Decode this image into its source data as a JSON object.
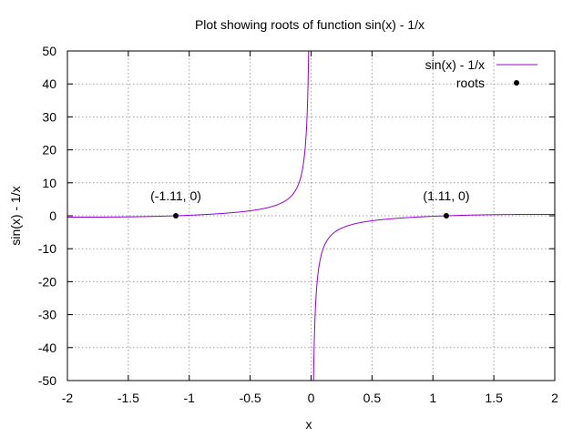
{
  "chart_data": {
    "type": "line",
    "title": "Plot showing roots of function sin(x) - 1/x",
    "xlabel": "x",
    "ylabel": "sin(x) - 1/x",
    "xlim": [
      -2,
      2
    ],
    "ylim": [
      -50,
      50
    ],
    "grid": true,
    "legend_position": "top-right",
    "x_ticks": [
      -2,
      -1.5,
      -1,
      -0.5,
      0,
      0.5,
      1,
      1.5,
      2
    ],
    "x_tick_labels": [
      "-2",
      "-1.5",
      "-1",
      "-0.5",
      "0",
      "0.5",
      "1",
      "1.5",
      "2"
    ],
    "y_ticks": [
      -50,
      -40,
      -30,
      -20,
      -10,
      0,
      10,
      20,
      30,
      40,
      50
    ],
    "y_tick_labels": [
      "-50",
      "-40",
      "-30",
      "-20",
      "-10",
      "0",
      "10",
      "20",
      "30",
      "40",
      "50"
    ],
    "series": [
      {
        "name": "sin(x) - 1/x",
        "color": "#9400d3",
        "style": "line",
        "function": "sin(x) - 1/x"
      },
      {
        "name": "roots",
        "color": "#000000",
        "style": "points",
        "points": [
          {
            "x": -1.11,
            "y": 0
          },
          {
            "x": 1.11,
            "y": 0
          }
        ]
      }
    ],
    "annotations": [
      {
        "text": "(-1.11, 0)",
        "x": -1.11,
        "y": 0
      },
      {
        "text": "(1.11, 0)",
        "x": 1.11,
        "y": 0
      }
    ]
  }
}
